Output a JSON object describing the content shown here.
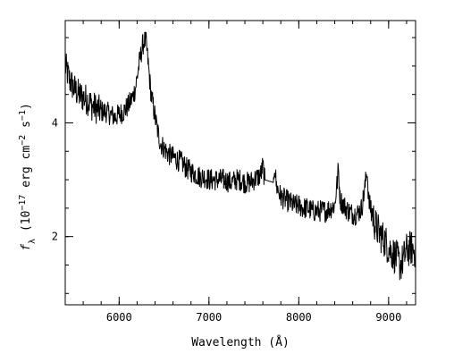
{
  "chart_data": {
    "type": "line",
    "xlabel": "Wavelength (Å)",
    "ylabel": {
      "parts": [
        {
          "text": "f",
          "style": "italic"
        },
        {
          "text": "λ",
          "style": "sub"
        },
        {
          "text": " (10",
          "style": "normal"
        },
        {
          "text": "−17",
          "style": "sup"
        },
        {
          "text": " erg cm",
          "style": "normal"
        },
        {
          "text": "−2",
          "style": "sup"
        },
        {
          "text": " s",
          "style": "normal"
        },
        {
          "text": "−1",
          "style": "sup"
        },
        {
          "text": ")",
          "style": "normal"
        }
      ]
    },
    "xlim": [
      5400,
      9300
    ],
    "ylim": [
      0.8,
      5.8
    ],
    "x_ticks": [
      {
        "value": 6000,
        "label": "6000"
      },
      {
        "value": 7000,
        "label": "7000"
      },
      {
        "value": 8000,
        "label": "8000"
      },
      {
        "value": 9000,
        "label": "9000"
      }
    ],
    "x_minor_step": 200,
    "y_ticks": [
      {
        "value": 2,
        "label": "2"
      },
      {
        "value": 4,
        "label": "4"
      }
    ],
    "y_minor_step": 0.5,
    "grid": false,
    "line_color": "#000000",
    "series": [
      {
        "values_anchor_x": [
          5400,
          5450,
          5500,
          5550,
          5600,
          5650,
          5700,
          5750,
          5800,
          5850,
          5900,
          5950,
          6000,
          6050,
          6100,
          6150,
          6180,
          6200,
          6230,
          6260,
          6280,
          6300,
          6320,
          6340,
          6360,
          6380,
          6400,
          6430,
          6460,
          6500,
          6550,
          6600,
          6650,
          6700,
          6750,
          6800,
          6850,
          6900,
          6950,
          7000,
          7050,
          7100,
          7150,
          7200,
          7250,
          7300,
          7350,
          7400,
          7450,
          7500,
          7550,
          7580,
          7600,
          7620,
          7650,
          7700,
          7720,
          7730,
          7750,
          7800,
          7850,
          7900,
          7950,
          8000,
          8050,
          8100,
          8150,
          8200,
          8250,
          8300,
          8350,
          8400,
          8430,
          8440,
          8460,
          8500,
          8550,
          8600,
          8650,
          8700,
          8740,
          8760,
          8780,
          8820,
          8850,
          8900,
          8950,
          9000,
          9050,
          9100,
          9130,
          9150,
          9200,
          9250,
          9300
        ],
        "values_anchor_y": [
          5.0,
          4.75,
          4.6,
          4.5,
          4.45,
          4.4,
          4.3,
          4.25,
          4.2,
          4.2,
          4.15,
          4.1,
          4.15,
          4.2,
          4.3,
          4.45,
          4.6,
          4.8,
          5.1,
          5.35,
          5.45,
          5.4,
          5.1,
          4.75,
          4.45,
          4.3,
          4.1,
          3.85,
          3.65,
          3.55,
          3.45,
          3.4,
          3.35,
          3.3,
          3.2,
          3.15,
          3.1,
          3.05,
          3.05,
          3.0,
          3.0,
          3.0,
          3.0,
          2.98,
          2.95,
          3.0,
          3.0,
          2.95,
          2.95,
          3.0,
          3.05,
          3.1,
          3.25,
          3.0,
          2.95,
          2.85,
          2.95,
          3.3,
          2.9,
          2.7,
          2.65,
          2.6,
          2.55,
          2.55,
          2.5,
          2.5,
          2.45,
          2.45,
          2.45,
          2.45,
          2.5,
          2.55,
          3.0,
          3.2,
          2.65,
          2.55,
          2.45,
          2.4,
          2.4,
          2.5,
          2.9,
          3.2,
          2.6,
          2.4,
          2.2,
          2.05,
          1.95,
          1.8,
          1.7,
          1.6,
          1.5,
          1.55,
          1.75,
          1.8,
          1.75
        ],
        "gap_x": [
          7620,
          7720
        ]
      }
    ]
  }
}
